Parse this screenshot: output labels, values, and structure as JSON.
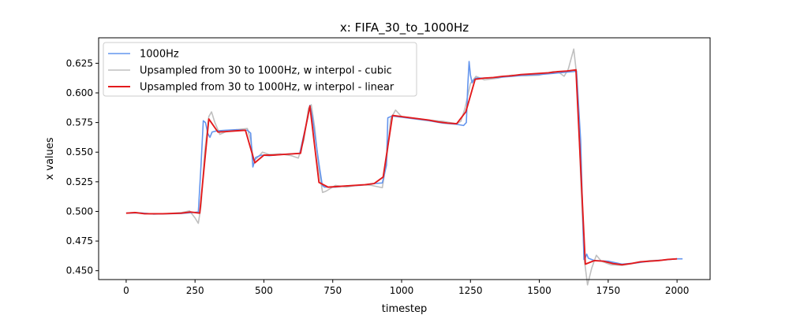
{
  "chart_data": {
    "type": "line",
    "title": "x: FIFA_30_to_1000Hz",
    "xlabel": "timestep",
    "ylabel": "x values",
    "xlim": [
      -100,
      2120
    ],
    "ylim": [
      0.4425,
      0.6465
    ],
    "xticks": [
      0,
      250,
      500,
      750,
      1000,
      1250,
      1500,
      1750,
      2000
    ],
    "yticks": [
      0.45,
      0.475,
      0.5,
      0.525,
      0.55,
      0.575,
      0.6,
      0.625
    ],
    "xtick_labels": [
      "0",
      "250",
      "500",
      "750",
      "1000",
      "1250",
      "1500",
      "1750",
      "2000"
    ],
    "ytick_labels": [
      "0.450",
      "0.475",
      "0.500",
      "0.525",
      "0.550",
      "0.575",
      "0.600",
      "0.625"
    ],
    "grid": false,
    "legend_position": "upper-left",
    "series": [
      {
        "name": "1000Hz",
        "color": "#6495ed",
        "points": [
          [
            0,
            0.4985
          ],
          [
            50,
            0.4988
          ],
          [
            100,
            0.4978
          ],
          [
            150,
            0.498
          ],
          [
            200,
            0.4983
          ],
          [
            240,
            0.499
          ],
          [
            262,
            0.4995
          ],
          [
            272,
            0.54
          ],
          [
            280,
            0.5765
          ],
          [
            288,
            0.575
          ],
          [
            296,
            0.566
          ],
          [
            304,
            0.5625
          ],
          [
            312,
            0.567
          ],
          [
            330,
            0.568
          ],
          [
            360,
            0.5685
          ],
          [
            400,
            0.569
          ],
          [
            440,
            0.5685
          ],
          [
            452,
            0.566
          ],
          [
            460,
            0.5375
          ],
          [
            470,
            0.5455
          ],
          [
            490,
            0.5475
          ],
          [
            520,
            0.547
          ],
          [
            560,
            0.548
          ],
          [
            600,
            0.5485
          ],
          [
            630,
            0.549
          ],
          [
            660,
            0.58
          ],
          [
            667,
            0.5895
          ],
          [
            676,
            0.58
          ],
          [
            700,
            0.54
          ],
          [
            712,
            0.522
          ],
          [
            720,
            0.5205
          ],
          [
            760,
            0.5205
          ],
          [
            800,
            0.5215
          ],
          [
            850,
            0.522
          ],
          [
            900,
            0.5235
          ],
          [
            930,
            0.524
          ],
          [
            945,
            0.539
          ],
          [
            950,
            0.579
          ],
          [
            965,
            0.5805
          ],
          [
            1000,
            0.5795
          ],
          [
            1050,
            0.578
          ],
          [
            1100,
            0.5765
          ],
          [
            1150,
            0.5745
          ],
          [
            1200,
            0.5735
          ],
          [
            1225,
            0.5725
          ],
          [
            1235,
            0.575
          ],
          [
            1240,
            0.605
          ],
          [
            1245,
            0.6265
          ],
          [
            1250,
            0.615
          ],
          [
            1256,
            0.6085
          ],
          [
            1262,
            0.611
          ],
          [
            1270,
            0.6125
          ],
          [
            1300,
            0.6125
          ],
          [
            1350,
            0.613
          ],
          [
            1400,
            0.614
          ],
          [
            1450,
            0.615
          ],
          [
            1500,
            0.6155
          ],
          [
            1550,
            0.6165
          ],
          [
            1600,
            0.6175
          ],
          [
            1625,
            0.618
          ],
          [
            1635,
            0.6185
          ],
          [
            1650,
            0.56
          ],
          [
            1662,
            0.4595
          ],
          [
            1668,
            0.4615
          ],
          [
            1672,
            0.464
          ],
          [
            1678,
            0.4605
          ],
          [
            1700,
            0.4585
          ],
          [
            1750,
            0.458
          ],
          [
            1800,
            0.4555
          ],
          [
            1850,
            0.4565
          ],
          [
            1900,
            0.458
          ],
          [
            1950,
            0.459
          ],
          [
            2000,
            0.46
          ],
          [
            2020,
            0.46
          ]
        ]
      },
      {
        "name": "Upsampled from 30 to 1000Hz, w interpol - cubic",
        "color": "#bfbfbf",
        "points": [
          [
            0,
            0.4985
          ],
          [
            30,
            0.4992
          ],
          [
            60,
            0.4985
          ],
          [
            100,
            0.4978
          ],
          [
            150,
            0.4982
          ],
          [
            200,
            0.499
          ],
          [
            230,
            0.5005
          ],
          [
            250,
            0.4945
          ],
          [
            262,
            0.49
          ],
          [
            272,
            0.505
          ],
          [
            285,
            0.55
          ],
          [
            300,
            0.58
          ],
          [
            310,
            0.584
          ],
          [
            322,
            0.575
          ],
          [
            340,
            0.565
          ],
          [
            360,
            0.567
          ],
          [
            400,
            0.569
          ],
          [
            440,
            0.57
          ],
          [
            452,
            0.56
          ],
          [
            463,
            0.543
          ],
          [
            475,
            0.545
          ],
          [
            495,
            0.55
          ],
          [
            520,
            0.548
          ],
          [
            560,
            0.5485
          ],
          [
            600,
            0.547
          ],
          [
            625,
            0.545
          ],
          [
            645,
            0.56
          ],
          [
            662,
            0.587
          ],
          [
            672,
            0.59
          ],
          [
            685,
            0.57
          ],
          [
            700,
            0.535
          ],
          [
            713,
            0.516
          ],
          [
            725,
            0.517
          ],
          [
            760,
            0.522
          ],
          [
            800,
            0.5205
          ],
          [
            850,
            0.5225
          ],
          [
            890,
            0.522
          ],
          [
            930,
            0.52
          ],
          [
            945,
            0.542
          ],
          [
            960,
            0.578
          ],
          [
            978,
            0.5855
          ],
          [
            1000,
            0.58
          ],
          [
            1050,
            0.5785
          ],
          [
            1100,
            0.577
          ],
          [
            1150,
            0.576
          ],
          [
            1200,
            0.574
          ],
          [
            1215,
            0.576
          ],
          [
            1230,
            0.587
          ],
          [
            1250,
            0.608
          ],
          [
            1270,
            0.614
          ],
          [
            1300,
            0.611
          ],
          [
            1350,
            0.6125
          ],
          [
            1400,
            0.615
          ],
          [
            1450,
            0.6145
          ],
          [
            1500,
            0.615
          ],
          [
            1550,
            0.618
          ],
          [
            1570,
            0.6175
          ],
          [
            1590,
            0.614
          ],
          [
            1605,
            0.62
          ],
          [
            1625,
            0.637
          ],
          [
            1637,
            0.612
          ],
          [
            1650,
            0.53
          ],
          [
            1663,
            0.46
          ],
          [
            1675,
            0.438
          ],
          [
            1690,
            0.452
          ],
          [
            1707,
            0.463
          ],
          [
            1725,
            0.458
          ],
          [
            1760,
            0.455
          ],
          [
            1800,
            0.4545
          ],
          [
            1850,
            0.4565
          ],
          [
            1900,
            0.4585
          ],
          [
            1950,
            0.459
          ],
          [
            2000,
            0.46
          ]
        ]
      },
      {
        "name": "Upsampled from 30 to 1000Hz, w interpol - linear",
        "color": "#e31a1c",
        "points": [
          [
            0,
            0.4985
          ],
          [
            33,
            0.499
          ],
          [
            67,
            0.498
          ],
          [
            100,
            0.498
          ],
          [
            133,
            0.498
          ],
          [
            167,
            0.4983
          ],
          [
            200,
            0.4985
          ],
          [
            233,
            0.4995
          ],
          [
            267,
            0.4985
          ],
          [
            300,
            0.578
          ],
          [
            333,
            0.567
          ],
          [
            367,
            0.5675
          ],
          [
            400,
            0.568
          ],
          [
            433,
            0.5685
          ],
          [
            467,
            0.541
          ],
          [
            500,
            0.5475
          ],
          [
            533,
            0.5475
          ],
          [
            567,
            0.548
          ],
          [
            600,
            0.5485
          ],
          [
            633,
            0.549
          ],
          [
            667,
            0.589
          ],
          [
            700,
            0.5245
          ],
          [
            733,
            0.5205
          ],
          [
            767,
            0.521
          ],
          [
            800,
            0.5215
          ],
          [
            833,
            0.522
          ],
          [
            867,
            0.5225
          ],
          [
            900,
            0.5235
          ],
          [
            933,
            0.529
          ],
          [
            967,
            0.581
          ],
          [
            1000,
            0.58
          ],
          [
            1033,
            0.579
          ],
          [
            1067,
            0.578
          ],
          [
            1100,
            0.577
          ],
          [
            1133,
            0.5755
          ],
          [
            1167,
            0.5745
          ],
          [
            1200,
            0.574
          ],
          [
            1233,
            0.584
          ],
          [
            1267,
            0.6115
          ],
          [
            1300,
            0.6125
          ],
          [
            1333,
            0.613
          ],
          [
            1367,
            0.614
          ],
          [
            1400,
            0.6145
          ],
          [
            1433,
            0.6155
          ],
          [
            1467,
            0.616
          ],
          [
            1500,
            0.6165
          ],
          [
            1533,
            0.617
          ],
          [
            1567,
            0.618
          ],
          [
            1600,
            0.6185
          ],
          [
            1633,
            0.6195
          ],
          [
            1667,
            0.4555
          ],
          [
            1700,
            0.4585
          ],
          [
            1733,
            0.458
          ],
          [
            1767,
            0.456
          ],
          [
            1800,
            0.455
          ],
          [
            1833,
            0.456
          ],
          [
            1867,
            0.4575
          ],
          [
            1900,
            0.458
          ],
          [
            1933,
            0.4585
          ],
          [
            1967,
            0.4595
          ],
          [
            2000,
            0.46
          ]
        ]
      }
    ]
  }
}
